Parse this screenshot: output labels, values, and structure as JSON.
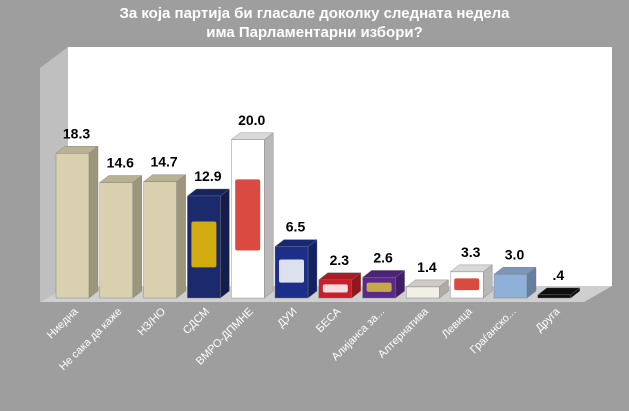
{
  "chart_data": {
    "type": "bar",
    "title_lines": [
      "За која партија би гласале доколку следната недела",
      "има Парламентарни избори?"
    ],
    "categories": [
      "Ниедна",
      "Не сака да каже",
      "НЗ/НО",
      "СДСМ",
      "ВМРО-ДПМНЕ",
      "ДУИ",
      "БЕСА",
      "Алијанса за...",
      "Алтернатива",
      "Левица",
      "Граѓанско...",
      "Друга"
    ],
    "value_labels": [
      "18.3",
      "14.6",
      "14.7",
      "12.9",
      "20.0",
      "6.5",
      "2.3",
      "2.6",
      "1.4",
      "3.3",
      "3.0",
      ".4"
    ],
    "values": [
      18.3,
      14.6,
      14.7,
      12.9,
      20.0,
      6.5,
      2.3,
      2.6,
      1.4,
      3.3,
      3.0,
      0.4
    ],
    "bar_colors": [
      "#d8d0ae",
      "#d8d0ae",
      "#d8d0ae",
      "#1a2a6c",
      "#ffffff",
      "#1b2f8a",
      "#c8202a",
      "#5a2a8a",
      "#f2efe6",
      "#ffffff",
      "#8fb0d8",
      "#101010"
    ],
    "bar_accents": [
      "",
      "",
      "",
      "#f2c200",
      "#d42a1e",
      "#ffffff",
      "#ffffff",
      "#d8c040",
      "#e08020",
      "#d42a1e",
      "",
      ""
    ],
    "ylim": [
      0,
      22
    ],
    "grid": false,
    "legend": "none"
  }
}
